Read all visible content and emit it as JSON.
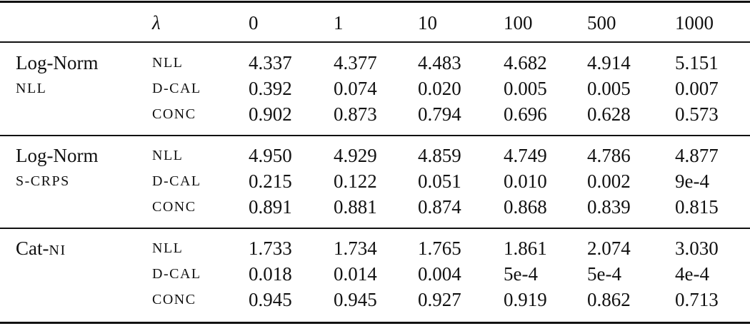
{
  "header": {
    "lambda": "λ",
    "columns": [
      "0",
      "1",
      "10",
      "100",
      "500",
      "1000"
    ]
  },
  "groups": [
    {
      "name": "Log-Norm",
      "name_suffix": "",
      "subtitle": "NLL",
      "rows": [
        {
          "metric": "NLL",
          "values": [
            "4.337",
            "4.377",
            "4.483",
            "4.682",
            "4.914",
            "5.151"
          ]
        },
        {
          "metric": "D-CAL",
          "values": [
            "0.392",
            "0.074",
            "0.020",
            "0.005",
            "0.005",
            "0.007"
          ]
        },
        {
          "metric": "CONC",
          "values": [
            "0.902",
            "0.873",
            "0.794",
            "0.696",
            "0.628",
            "0.573"
          ]
        }
      ]
    },
    {
      "name": "Log-Norm",
      "name_suffix": "",
      "subtitle": "S-CRPS",
      "rows": [
        {
          "metric": "NLL",
          "values": [
            "4.950",
            "4.929",
            "4.859",
            "4.749",
            "4.786",
            "4.877"
          ]
        },
        {
          "metric": "D-CAL",
          "values": [
            "0.215",
            "0.122",
            "0.051",
            "0.010",
            "0.002",
            "9e-4"
          ]
        },
        {
          "metric": "CONC",
          "values": [
            "0.891",
            "0.881",
            "0.874",
            "0.868",
            "0.839",
            "0.815"
          ]
        }
      ]
    },
    {
      "name": "Cat-",
      "name_suffix": "NI",
      "subtitle": "",
      "rows": [
        {
          "metric": "NLL",
          "values": [
            "1.733",
            "1.734",
            "1.765",
            "1.861",
            "2.074",
            "3.030"
          ]
        },
        {
          "metric": "D-CAL",
          "values": [
            "0.018",
            "0.014",
            "0.004",
            "5e-4",
            "5e-4",
            "4e-4"
          ]
        },
        {
          "metric": "CONC",
          "values": [
            "0.945",
            "0.945",
            "0.927",
            "0.919",
            "0.862",
            "0.713"
          ]
        }
      ]
    }
  ]
}
